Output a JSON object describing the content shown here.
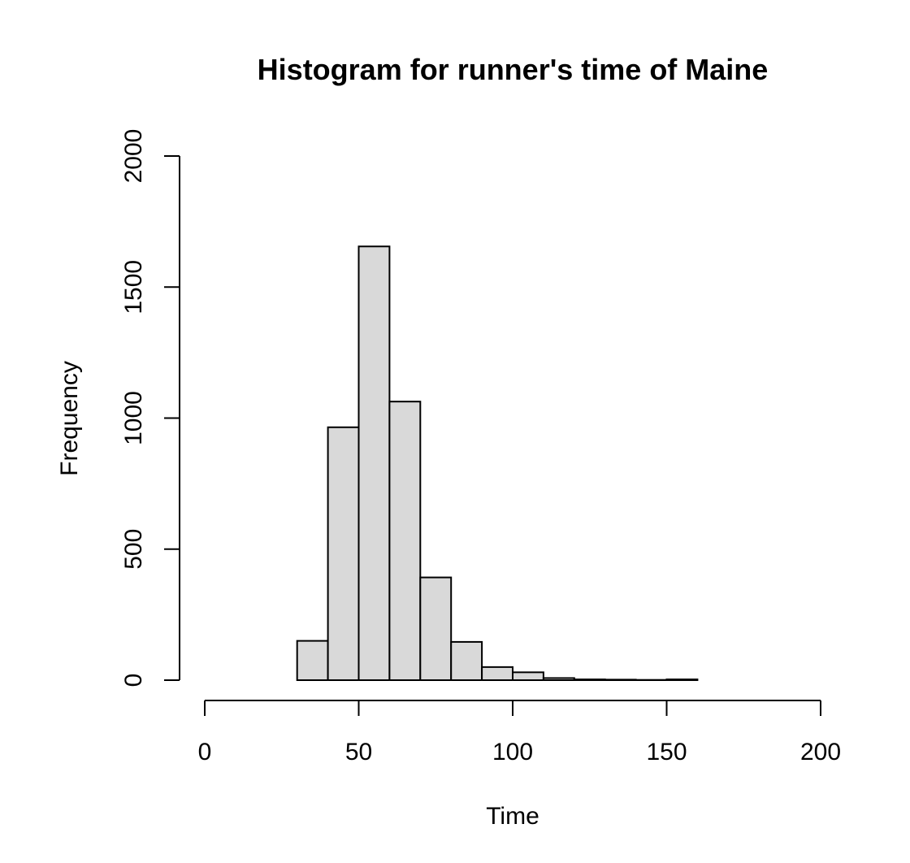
{
  "chart_data": {
    "type": "bar",
    "title": "Histogram for runner's time of Maine",
    "xlabel": "Time",
    "ylabel": "Frequency",
    "xlim": [
      0,
      200
    ],
    "ylim": [
      0,
      2000
    ],
    "x_ticks": [
      0,
      50,
      100,
      150,
      200
    ],
    "y_ticks": [
      0,
      500,
      1000,
      1500,
      2000
    ],
    "bin_edges": [
      30,
      40,
      50,
      60,
      70,
      80,
      90,
      100,
      110,
      120,
      130,
      140,
      150,
      160
    ],
    "values": [
      150,
      965,
      1655,
      1063,
      392,
      146,
      50,
      30,
      8,
      3,
      2,
      1,
      3
    ],
    "bar_color": "#d9d9d9",
    "edge_color": "#000000",
    "grid": false
  }
}
